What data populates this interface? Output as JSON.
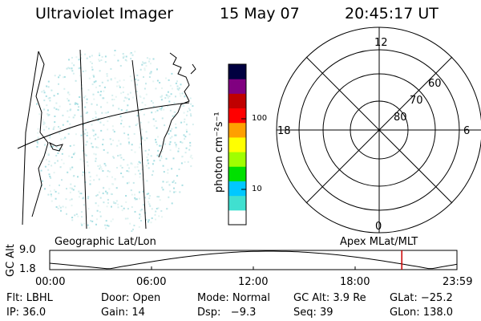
{
  "header": {
    "instrument": "Ultraviolet Imager",
    "date": "15 May 07",
    "time": "20:45:17 UT"
  },
  "colorbar": {
    "unit_label": "photon cm⁻²s⁻¹",
    "ticks": [
      "100",
      "10"
    ],
    "colors": [
      "#ffffff",
      "#40e0d0",
      "#00c8ff",
      "#00e000",
      "#a0ff00",
      "#ffff00",
      "#ffa000",
      "#ff0000",
      "#c00000",
      "#800080",
      "#000040"
    ]
  },
  "polar_plot": {
    "mlt_labels": {
      "top": "12",
      "left": "18",
      "right": "6",
      "bottom": "0"
    },
    "lat_labels": [
      "60",
      "70",
      "80"
    ]
  },
  "captions": {
    "left": "Geographic Lat/Lon",
    "right": "Apex MLat/MLT"
  },
  "altitude_plot": {
    "axis_title": "GC Alt",
    "ticks": [
      "9.0",
      "1.8"
    ],
    "x_labels": [
      "00:00",
      "06:00",
      "12:00",
      "18:00",
      "23:59"
    ],
    "current_marker_color": "#cc0000",
    "current_time_hours": 20.75
  },
  "info": {
    "flt": "Flt: LBHL",
    "door": "Door: Open",
    "mode": "Mode: Normal",
    "gc_alt": "GC Alt: 3.9 Re",
    "glat": "GLat: −25.2",
    "ip": "IP: 36.0",
    "gain": "Gain: 14",
    "dsp": "Dsp:   −9.3",
    "seq": "Seq: 39",
    "glon": "GLon: 138.0"
  }
}
